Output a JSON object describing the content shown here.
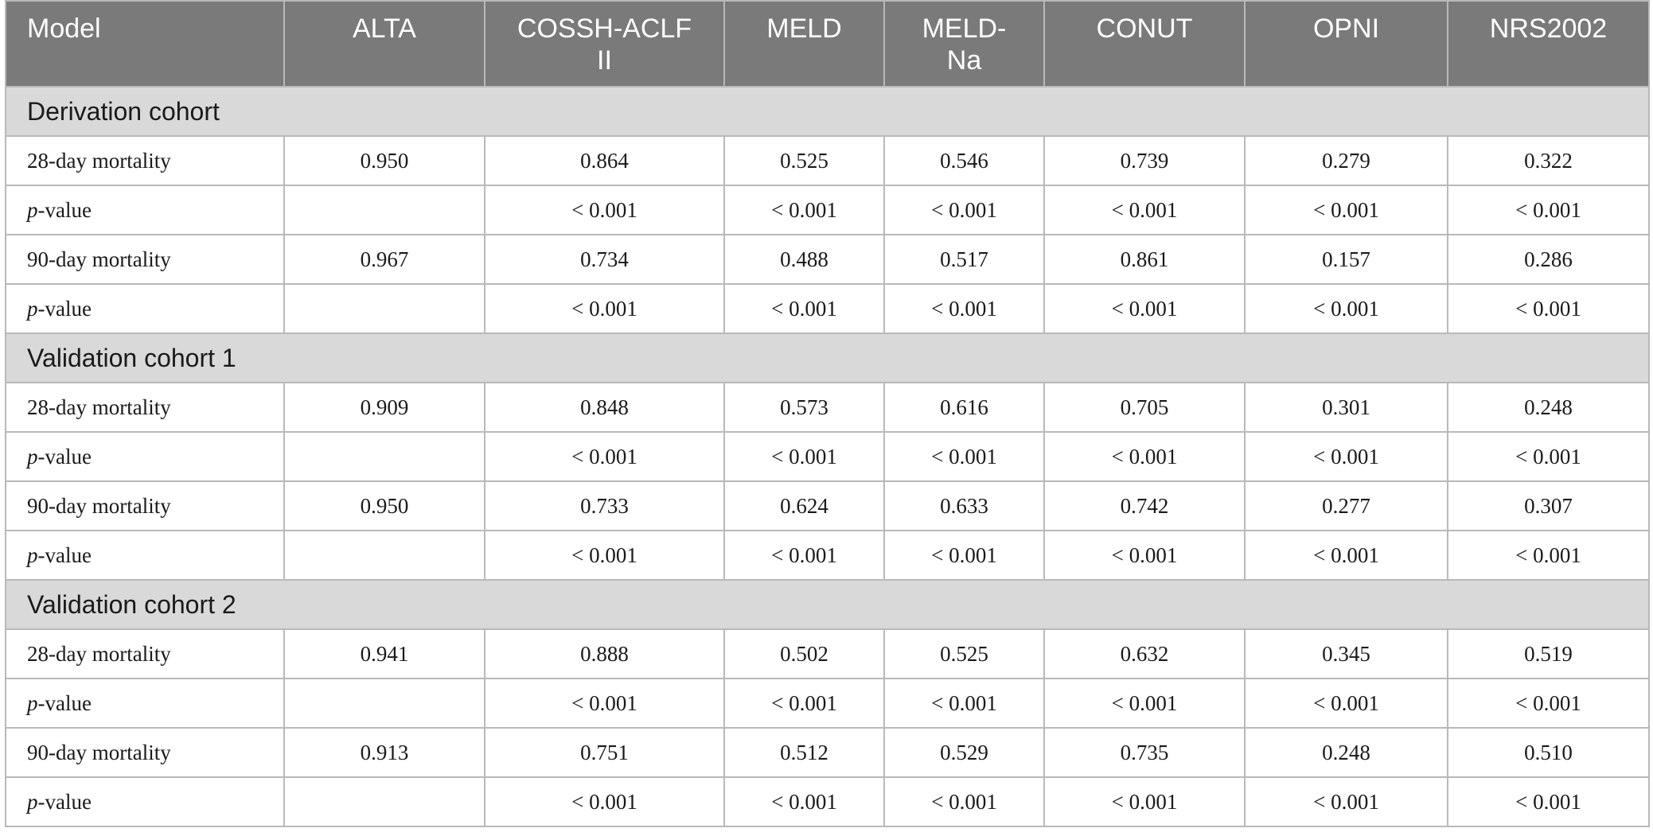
{
  "table": {
    "headers": [
      "Model",
      "ALTA",
      "COSSH-ACLF II",
      "MELD",
      "MELD-Na",
      "CONUT",
      "OPNI",
      "NRS2002"
    ],
    "header_lines": {
      "c2_l1": "COSSH-ACLF",
      "c2_l2": "II",
      "c4_l1": "MELD-",
      "c4_l2": "Na"
    },
    "sections": [
      {
        "title": "Derivation cohort",
        "rows": [
          {
            "label": "28-day mortality",
            "values": [
              "0.950",
              "0.864",
              "0.525",
              "0.546",
              "0.739",
              "0.279",
              "0.322"
            ]
          },
          {
            "label_italic": "p",
            "label_rest": "-value",
            "values": [
              "",
              "< 0.001",
              "< 0.001",
              "< 0.001",
              "< 0.001",
              "< 0.001",
              "< 0.001"
            ]
          },
          {
            "label": "90-day mortality",
            "values": [
              "0.967",
              "0.734",
              "0.488",
              "0.517",
              "0.861",
              "0.157",
              "0.286"
            ]
          },
          {
            "label_italic": "p",
            "label_rest": "-value",
            "values": [
              "",
              "< 0.001",
              "< 0.001",
              "< 0.001",
              "< 0.001",
              "< 0.001",
              "< 0.001"
            ]
          }
        ]
      },
      {
        "title": "Validation cohort 1",
        "rows": [
          {
            "label": "28-day mortality",
            "values": [
              "0.909",
              "0.848",
              "0.573",
              "0.616",
              "0.705",
              "0.301",
              "0.248"
            ]
          },
          {
            "label_italic": "p",
            "label_rest": "-value",
            "values": [
              "",
              "< 0.001",
              "< 0.001",
              "< 0.001",
              "< 0.001",
              "< 0.001",
              "< 0.001"
            ]
          },
          {
            "label": "90-day mortality",
            "values": [
              "0.950",
              "0.733",
              "0.624",
              "0.633",
              "0.742",
              "0.277",
              "0.307"
            ]
          },
          {
            "label_italic": "p",
            "label_rest": "-value",
            "values": [
              "",
              "< 0.001",
              "< 0.001",
              "< 0.001",
              "< 0.001",
              "< 0.001",
              "< 0.001"
            ]
          }
        ]
      },
      {
        "title": "Validation cohort 2",
        "rows": [
          {
            "label": "28-day mortality",
            "values": [
              "0.941",
              "0.888",
              "0.502",
              "0.525",
              "0.632",
              "0.345",
              "0.519"
            ]
          },
          {
            "label_italic": "p",
            "label_rest": "-value",
            "values": [
              "",
              "< 0.001",
              "< 0.001",
              "< 0.001",
              "< 0.001",
              "< 0.001",
              "< 0.001"
            ]
          },
          {
            "label": "90-day mortality",
            "values": [
              "0.913",
              "0.751",
              "0.512",
              "0.529",
              "0.735",
              "0.248",
              "0.510"
            ]
          },
          {
            "label_italic": "p",
            "label_rest": "-value",
            "values": [
              "",
              "< 0.001",
              "< 0.001",
              "< 0.001",
              "< 0.001",
              "< 0.001",
              "< 0.001"
            ]
          }
        ]
      }
    ]
  }
}
